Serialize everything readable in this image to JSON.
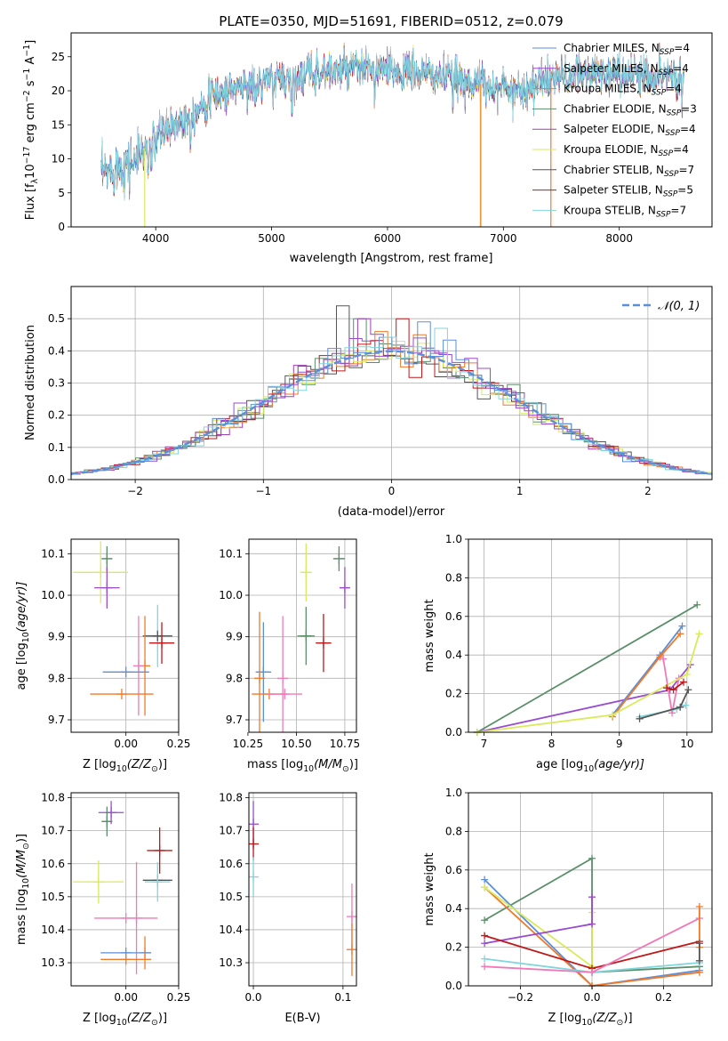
{
  "colors": {
    "cm": "#5b8fd8",
    "sm": "#9a4cd0",
    "km": "#f07a2a",
    "ce": "#5a8f69",
    "se": "#a040b8",
    "ke": "#d9ea5a",
    "cs": "#555555",
    "ss": "#c01818",
    "ks": "#80d6dc",
    "pink": "#f07ab8",
    "gaussian": "#5b8fd8"
  },
  "legend": {
    "spectrum": [
      {
        "pre": "Chabrier MILES, N",
        "sub": "SSP",
        "post": "=4",
        "color": "#5b8fd8"
      },
      {
        "pre": "Salpeter MILES, N",
        "sub": "SSP",
        "post": "=4",
        "color": "#9a4cd0"
      },
      {
        "pre": "Kroupa MILES, N",
        "sub": "SSP",
        "post": "=4",
        "color": "#f07a2a"
      },
      {
        "pre": "Chabrier ELODIE, N",
        "sub": "SSP",
        "post": "=3",
        "color": "#5a8f69"
      },
      {
        "pre": "Salpeter ELODIE, N",
        "sub": "SSP",
        "post": "=4",
        "color": "#a040b8"
      },
      {
        "pre": "Kroupa ELODIE, N",
        "sub": "SSP",
        "post": "=4",
        "color": "#d9ea5a"
      },
      {
        "pre": "Chabrier STELIB, N",
        "sub": "SSP",
        "post": "=7",
        "color": "#555555"
      },
      {
        "pre": "Salpeter STELIB, N",
        "sub": "SSP",
        "post": "=5",
        "color": "#c01818"
      },
      {
        "pre": "Kroupa STELIB, N",
        "sub": "SSP",
        "post": "=7",
        "color": "#80d6dc"
      }
    ],
    "histogram": "𝒩(0, 1)"
  },
  "chart_data": [
    {
      "id": "spectrum",
      "type": "line",
      "title": "PLATE=0350, MJD=51691, FIBERID=0512, z=0.079",
      "xlabel": "wavelength [Angstrom, rest frame]",
      "ylabel_parts": [
        "Flux [f",
        "λ",
        "10",
        "−17",
        " erg cm",
        "−2",
        " s",
        "−1",
        " A",
        "−1",
        "]"
      ],
      "xlim": [
        3270,
        8800
      ],
      "ylim": [
        0,
        28.5
      ],
      "xticks": [
        4000,
        5000,
        6000,
        7000,
        8000
      ],
      "yticks": [
        0,
        5,
        10,
        15,
        20,
        25
      ],
      "continuum": [
        [
          3530,
          7.5
        ],
        [
          3650,
          8.8
        ],
        [
          3800,
          9.5
        ],
        [
          3900,
          11.5
        ],
        [
          4050,
          13.8
        ],
        [
          4300,
          16.5
        ],
        [
          4500,
          19.2
        ],
        [
          4700,
          20.6
        ],
        [
          5000,
          21.4
        ],
        [
          5200,
          22.2
        ],
        [
          5400,
          22.8
        ],
        [
          5600,
          22.9
        ],
        [
          5800,
          23.2
        ],
        [
          6000,
          23.0
        ],
        [
          6300,
          22.6
        ],
        [
          6600,
          21.8
        ],
        [
          6800,
          21.0
        ],
        [
          7000,
          20.4
        ],
        [
          7200,
          20.3
        ],
        [
          7400,
          21.8
        ],
        [
          7700,
          22.6
        ],
        [
          8000,
          22.6
        ],
        [
          8300,
          22.2
        ],
        [
          8560,
          22.8
        ]
      ],
      "noise": 1.3,
      "dips": [
        [
          3934,
          4.5
        ],
        [
          3969,
          4.0
        ],
        [
          4300,
          3.0
        ],
        [
          4861,
          3.5
        ],
        [
          5175,
          6.0
        ],
        [
          5270,
          2.0
        ],
        [
          5890,
          4.0
        ],
        [
          6563,
          3.0
        ],
        [
          7600,
          2.0
        ],
        [
          8500,
          4.0
        ],
        [
          8542,
          5.0
        ],
        [
          8662,
          4.0
        ]
      ],
      "zero_drops": [
        [
          3905,
          "#d9ea5a"
        ],
        [
          6800,
          "#d9ea5a"
        ],
        [
          6805,
          "#f07a2a"
        ],
        [
          7410,
          "#f07a2a"
        ]
      ]
    },
    {
      "id": "residuals",
      "type": "histogram",
      "xlabel": "(data-model)/error",
      "ylabel": "Normed distribution",
      "xlim": [
        -2.5,
        2.5
      ],
      "ylim": [
        0,
        0.6
      ],
      "xticks": [
        -2,
        -1,
        0,
        1,
        2
      ],
      "xtick_labels": [
        "−2",
        "−1",
        "0",
        "1",
        "2"
      ],
      "yticks": [
        0,
        0.1,
        0.2,
        0.3,
        0.4,
        0.5
      ],
      "ytick_labels": [
        "0.0",
        "0.1",
        "0.2",
        "0.3",
        "0.4",
        "0.5"
      ],
      "bin_width": 0.1,
      "peaks": [
        0.54,
        0.5,
        0.5,
        0.46,
        0.43,
        0.5,
        0.44,
        0.49,
        0.47
      ]
    },
    {
      "id": "age-vs-Z",
      "type": "scatter",
      "xlabel_parts": [
        "Z [log",
        "10",
        "(Z/Z",
        "⊙",
        ")]"
      ],
      "ylabel_parts": [
        "age  [log",
        "10",
        "(age/yr)]"
      ],
      "xlim": [
        -0.26,
        0.25
      ],
      "ylim": [
        9.67,
        10.135
      ],
      "xticks": [
        0,
        0.25
      ],
      "xtick_labels": [
        "0.00",
        "0.25"
      ],
      "yticks": [
        9.7,
        9.8,
        9.9,
        10.0,
        10.1
      ],
      "ytick_labels": [
        "9.7",
        "9.8",
        "9.9",
        "10.0",
        "10.1"
      ],
      "points": [
        {
          "x": -0.09,
          "y": 10.088,
          "xerr": 0.025,
          "yerr": 0.03,
          "c": "#5a8f69"
        },
        {
          "x": -0.12,
          "y": 10.055,
          "xerr": 0.13,
          "yerr": 0.075,
          "c": "#d9ea5a"
        },
        {
          "x": -0.09,
          "y": 10.018,
          "xerr": 0.06,
          "yerr": 0.05,
          "c": "#9a4cd0"
        },
        {
          "x": 0.15,
          "y": 9.902,
          "xerr": 0.07,
          "yerr": 0.075,
          "c": "#80d6dc"
        },
        {
          "x": 0.15,
          "y": 9.902,
          "xerr": 0.07,
          "yerr": 0.0,
          "c": "#555555"
        },
        {
          "x": 0.17,
          "y": 9.885,
          "xerr": 0.06,
          "yerr": 0.05,
          "c": "#c01818"
        },
        {
          "x": 0.09,
          "y": 9.83,
          "xerr": 0.0,
          "yerr": 0.12,
          "c": "#f07a2a"
        },
        {
          "x": 0.06,
          "y": 9.83,
          "xerr": 0.0,
          "yerr": 0.12,
          "c": "#f07ab8"
        },
        {
          "x": 0.0,
          "y": 9.815,
          "xerr": 0.11,
          "yerr": 0.0,
          "c": "#5b8fd8"
        },
        {
          "x": -0.02,
          "y": 9.762,
          "xerr": 0.15,
          "yerr": 0.0,
          "c": "#f07a2a"
        }
      ]
    },
    {
      "id": "age-vs-mass",
      "type": "scatter",
      "xlabel_parts": [
        "mass [log",
        "10",
        "(M/M",
        "⊙",
        ")]"
      ],
      "ylabel_parts": [],
      "xlim": [
        10.255,
        10.81
      ],
      "ylim": [
        9.67,
        10.135
      ],
      "xticks": [
        10.25,
        10.5,
        10.75
      ],
      "xtick_labels": [
        "10.25",
        "10.50",
        "10.75"
      ],
      "yticks": [
        9.7,
        9.8,
        9.9,
        10.0,
        10.1
      ],
      "ytick_labels": [
        "9.7",
        "9.8",
        "9.9",
        "10.0",
        "10.1"
      ],
      "points": [
        {
          "x": 10.72,
          "y": 10.088,
          "xerr": 0.03,
          "yerr": 0.03,
          "c": "#5a8f69"
        },
        {
          "x": 10.55,
          "y": 10.055,
          "xerr": 0.03,
          "yerr": 0.07,
          "c": "#d9ea5a"
        },
        {
          "x": 10.75,
          "y": 10.018,
          "xerr": 0.025,
          "yerr": 0.05,
          "c": "#9a4cd0"
        },
        {
          "x": 10.55,
          "y": 9.902,
          "xerr": 0.045,
          "yerr": 0.07,
          "c": "#5a8f69"
        },
        {
          "x": 10.64,
          "y": 9.885,
          "xerr": 0.04,
          "yerr": 0.07,
          "c": "#c01818"
        },
        {
          "x": 10.33,
          "y": 9.815,
          "xerr": 0.04,
          "yerr": 0.12,
          "c": "#5b8fd8"
        },
        {
          "x": 10.31,
          "y": 9.8,
          "xerr": 0.0,
          "yerr": 0.16,
          "c": "#f07a2a"
        },
        {
          "x": 10.43,
          "y": 9.8,
          "xerr": 0.0,
          "yerr": 0.15,
          "c": "#f07ab8"
        },
        {
          "x": 10.36,
          "y": 9.762,
          "xerr": 0.09,
          "yerr": 0.0,
          "c": "#f07a2a"
        },
        {
          "x": 10.44,
          "y": 9.762,
          "xerr": 0.09,
          "yerr": 0.0,
          "c": "#f07ab8"
        }
      ]
    },
    {
      "id": "mass-weight-vs-age",
      "type": "line",
      "xlabel_parts": [
        "age  [log",
        "10",
        "(age/yr)]"
      ],
      "ylabel": "mass weight",
      "xlim": [
        6.77,
        10.37
      ],
      "ylim": [
        0,
        1.0
      ],
      "xticks": [
        7,
        8,
        9,
        10
      ],
      "xtick_labels": [
        "7",
        "8",
        "9",
        "10"
      ],
      "yticks": [
        0,
        0.2,
        0.4,
        0.6,
        0.8,
        1.0
      ],
      "ytick_labels": [
        "0.0",
        "0.2",
        "0.4",
        "0.6",
        "0.8",
        "1.0"
      ],
      "series": [
        {
          "c": "#5a8f69",
          "pts": [
            [
              6.9,
              0.0
            ],
            [
              10.15,
              0.66
            ]
          ]
        },
        {
          "c": "#9a4cd0",
          "pts": [
            [
              6.9,
              0.0
            ],
            [
              9.75,
              0.22
            ],
            [
              10.05,
              0.35
            ]
          ]
        },
        {
          "c": "#5b8fd8",
          "pts": [
            [
              8.9,
              0.09
            ],
            [
              9.6,
              0.4
            ],
            [
              9.93,
              0.55
            ]
          ]
        },
        {
          "c": "#f07a2a",
          "pts": [
            [
              8.9,
              0.08
            ],
            [
              9.6,
              0.39
            ],
            [
              9.9,
              0.51
            ]
          ]
        },
        {
          "c": "#f07ab8",
          "pts": [
            [
              9.65,
              0.38
            ],
            [
              9.78,
              0.1
            ],
            [
              9.88,
              0.28
            ]
          ]
        },
        {
          "c": "#d9ea5a",
          "pts": [
            [
              6.9,
              0.0
            ],
            [
              8.9,
              0.09
            ],
            [
              10.0,
              0.3
            ],
            [
              10.18,
              0.51
            ]
          ]
        },
        {
          "c": "#c01818",
          "pts": [
            [
              9.7,
              0.23
            ],
            [
              9.8,
              0.22
            ],
            [
              9.95,
              0.26
            ]
          ]
        },
        {
          "c": "#80d6dc",
          "pts": [
            [
              9.3,
              0.08
            ],
            [
              9.85,
              0.12
            ],
            [
              9.98,
              0.14
            ]
          ]
        },
        {
          "c": "#555555",
          "pts": [
            [
              9.3,
              0.07
            ],
            [
              9.9,
              0.13
            ],
            [
              10.02,
              0.22
            ]
          ]
        }
      ]
    },
    {
      "id": "mass-vs-Z",
      "type": "scatter",
      "xlabel_parts": [
        "Z [log",
        "10",
        "(Z/Z",
        "⊙",
        ")]"
      ],
      "ylabel_parts": [
        "mass [log",
        "10",
        "(M/M",
        "⊙",
        ")]"
      ],
      "xlim": [
        -0.26,
        0.25
      ],
      "ylim": [
        10.23,
        10.815
      ],
      "xticks": [
        0,
        0.25
      ],
      "xtick_labels": [
        "0.00",
        "0.25"
      ],
      "yticks": [
        10.3,
        10.4,
        10.5,
        10.6,
        10.7,
        10.8
      ],
      "ytick_labels": [
        "10.3",
        "10.4",
        "10.5",
        "10.6",
        "10.7",
        "10.8"
      ],
      "points": [
        {
          "x": -0.07,
          "y": 10.755,
          "xerr": 0.06,
          "yerr": 0.035,
          "c": "#9a4cd0"
        },
        {
          "x": -0.09,
          "y": 10.728,
          "xerr": 0.025,
          "yerr": 0.045,
          "c": "#5a8f69"
        },
        {
          "x": 0.16,
          "y": 10.64,
          "xerr": 0.06,
          "yerr": 0.07,
          "c": "#c01818"
        },
        {
          "x": -0.13,
          "y": 10.545,
          "xerr": 0.12,
          "yerr": 0.065,
          "c": "#d9ea5a"
        },
        {
          "x": 0.15,
          "y": 10.55,
          "xerr": 0.07,
          "yerr": 0.0,
          "c": "#555555"
        },
        {
          "x": 0.15,
          "y": 10.545,
          "xerr": 0.06,
          "yerr": 0.06,
          "c": "#80d6dc"
        },
        {
          "x": 0.05,
          "y": 10.435,
          "xerr": 0.0,
          "yerr": 0.17,
          "c": "#f07ab8"
        },
        {
          "x": 0.0,
          "y": 10.435,
          "xerr": 0.15,
          "yerr": 0.0,
          "c": "#f07ab8"
        },
        {
          "x": 0.09,
          "y": 10.33,
          "xerr": 0.0,
          "yerr": 0.05,
          "c": "#f07a2a"
        },
        {
          "x": 0.0,
          "y": 10.33,
          "xerr": 0.12,
          "yerr": 0.0,
          "c": "#5b8fd8"
        },
        {
          "x": 0.0,
          "y": 10.31,
          "xerr": 0.12,
          "yerr": 0.0,
          "c": "#f07a2a"
        }
      ]
    },
    {
      "id": "mass-vs-EBV",
      "type": "scatter",
      "xlabel": "E(B-V)",
      "xlim": [
        -0.005,
        0.115
      ],
      "ylim": [
        10.23,
        10.815
      ],
      "xticks": [
        0.0,
        0.1
      ],
      "xtick_labels": [
        "0.0",
        "0.1"
      ],
      "yticks": [
        10.3,
        10.4,
        10.5,
        10.6,
        10.7,
        10.8
      ],
      "ytick_labels": [
        "10.3",
        "10.4",
        "10.5",
        "10.6",
        "10.7",
        "10.8"
      ],
      "points": [
        {
          "x": 0.0,
          "y": 10.72,
          "xerr": 0.0,
          "yerr": 0.07,
          "c": "#9a4cd0"
        },
        {
          "x": 0.0,
          "y": 10.66,
          "xerr": 0.0,
          "yerr": 0.05,
          "c": "#c01818"
        },
        {
          "x": 0.0,
          "y": 10.56,
          "xerr": 0.0,
          "yerr": 0.06,
          "c": "#80d6dc"
        },
        {
          "x": 0.11,
          "y": 10.44,
          "xerr": 0.0,
          "yerr": 0.1,
          "c": "#f07ab8"
        },
        {
          "x": 0.11,
          "y": 10.34,
          "xerr": 0.0,
          "yerr": 0.08,
          "c": "#f07a2a"
        }
      ]
    },
    {
      "id": "mass-weight-vs-Z",
      "type": "line",
      "xlabel_parts": [
        "Z [log",
        "10",
        "(Z/Z",
        "⊙",
        ")]"
      ],
      "ylabel": "mass weight",
      "xlim": [
        -0.345,
        0.335
      ],
      "ylim": [
        0,
        1.0
      ],
      "xticks": [
        -0.2,
        0.0,
        0.2
      ],
      "xtick_labels": [
        "−0.2",
        "0.0",
        "0.2"
      ],
      "yticks": [
        0,
        0.2,
        0.4,
        0.6,
        0.8,
        1.0
      ],
      "ytick_labels": [
        "0.0",
        "0.2",
        "0.4",
        "0.6",
        "0.8",
        "1.0"
      ],
      "series": [
        {
          "c": "#5a8f69",
          "pts": [
            [
              -0.3,
              0.34
            ],
            [
              0.0,
              0.66
            ],
            [
              0.0,
              0.07
            ],
            [
              0.3,
              0.1
            ]
          ]
        },
        {
          "c": "#5b8fd8",
          "pts": [
            [
              -0.3,
              0.55
            ],
            [
              0.0,
              0.0
            ],
            [
              0.3,
              0.08
            ]
          ]
        },
        {
          "c": "#f07a2a",
          "pts": [
            [
              -0.3,
              0.51
            ],
            [
              0.0,
              0.0
            ],
            [
              0.3,
              0.07
            ]
          ]
        },
        {
          "c": "#d9ea5a",
          "pts": [
            [
              -0.3,
              0.51
            ],
            [
              0.0,
              0.1
            ],
            [
              0.0,
              0.38
            ]
          ]
        },
        {
          "c": "#9a4cd0",
          "pts": [
            [
              -0.3,
              0.22
            ],
            [
              0.0,
              0.32
            ],
            [
              0.0,
              0.46
            ]
          ]
        },
        {
          "c": "#c01818",
          "pts": [
            [
              -0.3,
              0.26
            ],
            [
              0.0,
              0.09
            ],
            [
              0.3,
              0.23
            ]
          ]
        },
        {
          "c": "#80d6dc",
          "pts": [
            [
              -0.3,
              0.14
            ],
            [
              0.0,
              0.07
            ],
            [
              0.3,
              0.12
            ]
          ]
        },
        {
          "c": "#f07ab8",
          "pts": [
            [
              -0.3,
              0.1
            ],
            [
              0.0,
              0.07
            ],
            [
              0.3,
              0.35
            ]
          ]
        },
        {
          "c": "#f07a2a",
          "pts": [
            [
              0.3,
              0.41
            ],
            [
              0.3,
              0.2
            ]
          ]
        },
        {
          "c": "#555555",
          "pts": [
            [
              0.3,
              0.22
            ],
            [
              0.3,
              0.13
            ]
          ]
        }
      ]
    }
  ]
}
